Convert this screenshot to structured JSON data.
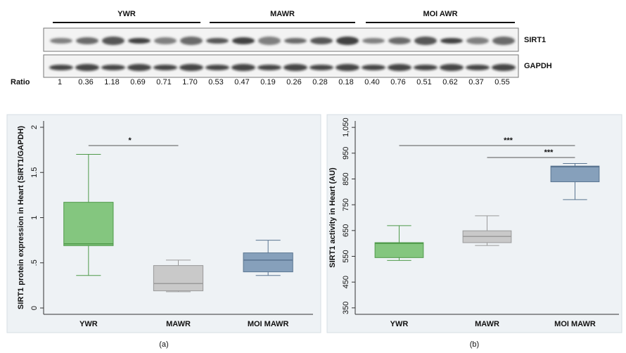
{
  "blot": {
    "groups": [
      "YWR",
      "MAWR",
      "MOI AWR"
    ],
    "rows": [
      "SIRT1",
      "GAPDH"
    ],
    "ratio_label": "Ratio",
    "ratios": [
      "1",
      "0.36",
      "1.18",
      "0.69",
      "0.71",
      "1.70",
      "0.53",
      "0.47",
      "0.19",
      "0.26",
      "0.28",
      "0.18",
      "0.40",
      "0.76",
      "0.51",
      "0.62",
      "0.37",
      "0.55"
    ]
  },
  "chart_data": [
    {
      "type": "box",
      "ylabel": "SIRT1 protein expression in Heart (SIRT1/GAPDH)",
      "caption": "(a)",
      "categories": [
        "YWR",
        "MAWR",
        "MOI MAWR"
      ],
      "colors": [
        "#84c67f",
        "#c9c9c9",
        "#86a0bb"
      ],
      "edge_colors": [
        "#4f9a4a",
        "#9a9a9a",
        "#5a7591"
      ],
      "min": [
        0.36,
        0.18,
        0.36
      ],
      "q1": [
        0.69,
        0.19,
        0.4
      ],
      "median": [
        0.71,
        0.27,
        0.53
      ],
      "q3": [
        1.17,
        0.47,
        0.61
      ],
      "max": [
        1.7,
        0.53,
        0.75
      ],
      "ylim": [
        -0.07,
        2.07
      ],
      "yticks": [
        0,
        {
          "value": 0.5,
          "label": ".5"
        },
        1,
        1.5,
        2
      ],
      "annotations": [
        {
          "text": "*",
          "between": [
            "YWR",
            "MAWR"
          ]
        }
      ]
    },
    {
      "type": "box",
      "ylabel": "SIRT1 activity in Heart (AU)",
      "caption": "(b)",
      "categories": [
        "YWR",
        "MAWR",
        "MOI MAWR"
      ],
      "colors": [
        "#84c67f",
        "#c9c9c9",
        "#86a0bb"
      ],
      "edge_colors": [
        "#4f9a4a",
        "#9a9a9a",
        "#5a7591"
      ],
      "min": [
        534,
        592,
        770
      ],
      "q1": [
        545,
        603,
        839
      ],
      "median": [
        600,
        627,
        897
      ],
      "q3": [
        603,
        649,
        900
      ],
      "max": [
        669,
        707,
        910
      ],
      "ylim": [
        325,
        1075
      ],
      "yticks": [
        350,
        450,
        550,
        650,
        750,
        850,
        950,
        {
          "value": 1050,
          "label": "1,050"
        }
      ],
      "annotations": [
        {
          "text": "***",
          "between": [
            "YWR",
            "MOI MAWR"
          ]
        },
        {
          "text": "***",
          "between": [
            "MAWR",
            "MOI MAWR"
          ]
        }
      ]
    }
  ]
}
